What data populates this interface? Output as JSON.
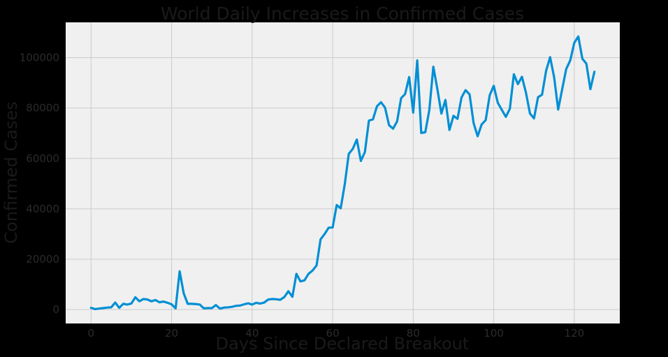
{
  "chart_data": {
    "type": "line",
    "title": "World Daily Increases in Confirmed Cases",
    "xlabel": "Days Since Declared Breakout",
    "ylabel": "Confirmed Cases",
    "xlim": [
      -6.3,
      131.3
    ],
    "ylim": [
      -5500,
      114000
    ],
    "x_ticks": [
      0,
      20,
      40,
      60,
      80,
      100,
      120
    ],
    "y_ticks": [
      0,
      20000,
      40000,
      60000,
      80000,
      100000
    ],
    "grid": true,
    "legend": "none",
    "colors": {
      "figure_background": "#000000",
      "plot_background": "#f0f0f0",
      "grid": "#cbcbcb",
      "line": "#008fd5",
      "text": "#1a1a1a",
      "tick_text": "#2b2b2b"
    },
    "series": [
      {
        "values": [
          [
            0,
            700
          ],
          [
            1,
            200
          ],
          [
            2,
            400
          ],
          [
            3,
            600
          ],
          [
            4,
            800
          ],
          [
            5,
            900
          ],
          [
            6,
            2800
          ],
          [
            7,
            700
          ],
          [
            8,
            2300
          ],
          [
            9,
            2000
          ],
          [
            10,
            2400
          ],
          [
            11,
            4900
          ],
          [
            12,
            3300
          ],
          [
            13,
            4200
          ],
          [
            14,
            4000
          ],
          [
            15,
            3300
          ],
          [
            16,
            3800
          ],
          [
            17,
            2900
          ],
          [
            18,
            3200
          ],
          [
            19,
            2700
          ],
          [
            20,
            2100
          ],
          [
            21,
            500
          ],
          [
            22,
            15200
          ],
          [
            23,
            6500
          ],
          [
            24,
            2300
          ],
          [
            25,
            2300
          ],
          [
            26,
            2200
          ],
          [
            27,
            2000
          ],
          [
            28,
            500
          ],
          [
            29,
            600
          ],
          [
            30,
            600
          ],
          [
            31,
            1800
          ],
          [
            32,
            400
          ],
          [
            33,
            800
          ],
          [
            34,
            900
          ],
          [
            35,
            1100
          ],
          [
            36,
            1500
          ],
          [
            37,
            1600
          ],
          [
            38,
            2100
          ],
          [
            39,
            2500
          ],
          [
            40,
            2000
          ],
          [
            41,
            2700
          ],
          [
            42,
            2400
          ],
          [
            43,
            2800
          ],
          [
            44,
            4000
          ],
          [
            45,
            4200
          ],
          [
            46,
            4100
          ],
          [
            47,
            3900
          ],
          [
            48,
            5000
          ],
          [
            49,
            7300
          ],
          [
            50,
            5100
          ],
          [
            51,
            14200
          ],
          [
            52,
            11200
          ],
          [
            53,
            11600
          ],
          [
            54,
            14200
          ],
          [
            55,
            15500
          ],
          [
            56,
            17500
          ],
          [
            57,
            27900
          ],
          [
            58,
            30000
          ],
          [
            59,
            32500
          ],
          [
            60,
            32600
          ],
          [
            61,
            41500
          ],
          [
            62,
            40200
          ],
          [
            63,
            49700
          ],
          [
            64,
            61800
          ],
          [
            65,
            63800
          ],
          [
            66,
            67500
          ],
          [
            67,
            59000
          ],
          [
            68,
            62500
          ],
          [
            69,
            75000
          ],
          [
            70,
            75500
          ],
          [
            71,
            80700
          ],
          [
            72,
            82300
          ],
          [
            73,
            80200
          ],
          [
            74,
            73200
          ],
          [
            75,
            71800
          ],
          [
            76,
            74700
          ],
          [
            77,
            83900
          ],
          [
            78,
            85600
          ],
          [
            79,
            92300
          ],
          [
            80,
            78200
          ],
          [
            81,
            98900
          ],
          [
            82,
            70100
          ],
          [
            83,
            70400
          ],
          [
            84,
            79200
          ],
          [
            85,
            96400
          ],
          [
            86,
            87500
          ],
          [
            87,
            77800
          ],
          [
            88,
            83200
          ],
          [
            89,
            71300
          ],
          [
            90,
            76900
          ],
          [
            91,
            75700
          ],
          [
            92,
            84200
          ],
          [
            93,
            87100
          ],
          [
            94,
            85400
          ],
          [
            95,
            74000
          ],
          [
            96,
            68800
          ],
          [
            97,
            73500
          ],
          [
            98,
            75200
          ],
          [
            99,
            85100
          ],
          [
            100,
            88800
          ],
          [
            101,
            82100
          ],
          [
            102,
            79300
          ],
          [
            103,
            76500
          ],
          [
            104,
            79700
          ],
          [
            105,
            93400
          ],
          [
            106,
            89500
          ],
          [
            107,
            92400
          ],
          [
            108,
            86100
          ],
          [
            109,
            77800
          ],
          [
            110,
            75900
          ],
          [
            111,
            84300
          ],
          [
            112,
            85300
          ],
          [
            113,
            94800
          ],
          [
            114,
            100200
          ],
          [
            115,
            92200
          ],
          [
            116,
            79400
          ],
          [
            117,
            87500
          ],
          [
            118,
            95500
          ],
          [
            119,
            98900
          ],
          [
            120,
            105900
          ],
          [
            121,
            108400
          ],
          [
            122,
            99600
          ],
          [
            123,
            97600
          ],
          [
            124,
            87500
          ],
          [
            125,
            94400
          ]
        ]
      }
    ]
  }
}
